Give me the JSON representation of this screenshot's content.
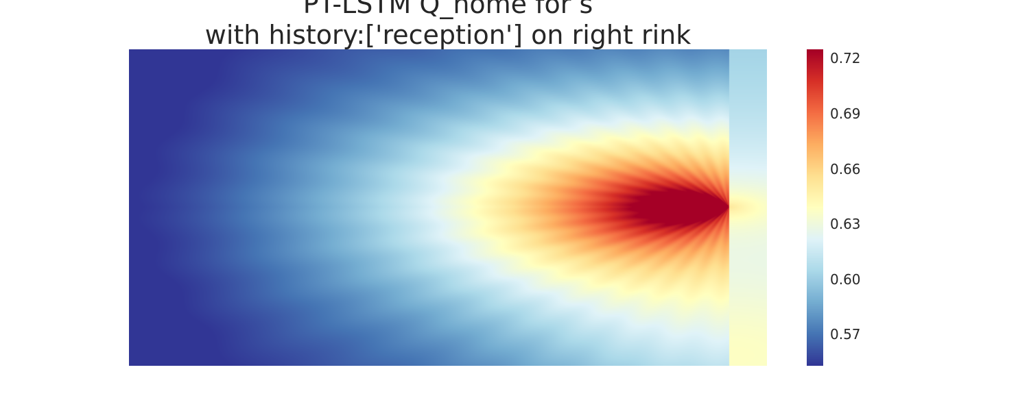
{
  "title": {
    "line1": "PT-LSTM Q_home for s",
    "line2": "with history:['reception'] on right rink"
  },
  "chart_data": {
    "type": "heatmap",
    "title": "PT-LSTM Q_home for s\nwith history:['reception'] on right rink",
    "xlabel": "",
    "ylabel": "",
    "grid": false,
    "colormap": "RdYlBu_r",
    "colormap_stops": [
      "#313695",
      "#4575b4",
      "#74add1",
      "#abd9e9",
      "#e0f3f8",
      "#ffffbf",
      "#fee090",
      "#fdae61",
      "#f46d43",
      "#d73027",
      "#a50026"
    ],
    "value_range": [
      0.553,
      0.725
    ],
    "colorbar": {
      "position": "right",
      "ticks": [
        0.57,
        0.6,
        0.63,
        0.66,
        0.69,
        0.72
      ],
      "tick_labels": [
        "0.57",
        "0.60",
        "0.63",
        "0.66",
        "0.69",
        "0.72"
      ]
    },
    "peak_value": 0.725,
    "min_value": 0.553
  }
}
